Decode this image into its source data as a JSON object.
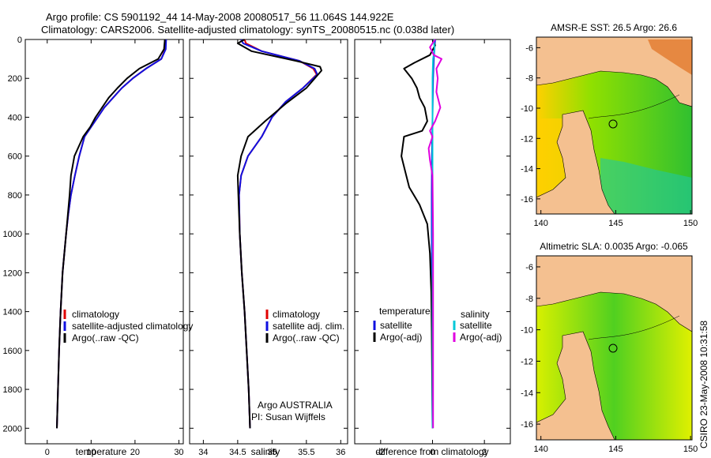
{
  "header": {
    "line1": "Argo profile: CS 5901192_44 14-May-2008 20080517_56 11.064S 144.922E",
    "line2": "Climatology: CARS2006. Satellite-adjusted climatology: synTS_20080515.nc (0.038d later)"
  },
  "credit": "CSIRO 23-May-2008 10:31:58",
  "colors": {
    "climatology": "#e00000",
    "satellite": "#1010e0",
    "argo": "#000000",
    "sat_salinity": "#00c8d8",
    "argo_salinity": "#e000e0",
    "land": "#f4c090"
  },
  "chart_data": [
    {
      "type": "line",
      "xlabel": "temperature",
      "ylabel": "",
      "xlim": [
        -5,
        31
      ],
      "ylim": [
        2080,
        0
      ],
      "xticks": [
        "0",
        "10",
        "20",
        "30"
      ],
      "yticks": [
        "0",
        "200",
        "400",
        "600",
        "800",
        "1000",
        "1200",
        "1400",
        "1600",
        "1800",
        "2000"
      ],
      "legend_labels": [
        "climatology",
        "satellite-adjusted climatology",
        "Argo(..raw -QC)"
      ],
      "series": [
        {
          "key": "climatology",
          "points": [
            [
              27,
              0
            ],
            [
              26.9,
              50
            ],
            [
              26,
              100
            ],
            [
              22.5,
              150
            ],
            [
              19.5,
              200
            ],
            [
              17,
              250
            ],
            [
              15,
              300
            ],
            [
              13,
              350
            ],
            [
              11.5,
              400
            ],
            [
              10,
              450
            ],
            [
              8.5,
              500
            ],
            [
              7.3,
              600
            ],
            [
              6.3,
              700
            ],
            [
              5.4,
              800
            ],
            [
              4.8,
              900
            ],
            [
              4.3,
              1000
            ],
            [
              3.5,
              1200
            ],
            [
              3.05,
              1400
            ],
            [
              2.7,
              1600
            ],
            [
              2.45,
              1800
            ],
            [
              2.2,
              2000
            ]
          ]
        },
        {
          "key": "satellite",
          "points": [
            [
              27.1,
              0
            ],
            [
              27,
              50
            ],
            [
              26,
              100
            ],
            [
              22.5,
              150
            ],
            [
              19.5,
              200
            ],
            [
              17,
              250
            ],
            [
              15,
              300
            ],
            [
              13,
              350
            ],
            [
              11.5,
              400
            ],
            [
              10,
              450
            ],
            [
              8.5,
              500
            ],
            [
              7.3,
              600
            ],
            [
              6.3,
              700
            ],
            [
              5.4,
              800
            ],
            [
              4.8,
              900
            ],
            [
              4.3,
              1000
            ],
            [
              3.5,
              1200
            ],
            [
              3.05,
              1400
            ],
            [
              2.7,
              1600
            ],
            [
              2.45,
              1800
            ],
            [
              2.2,
              2000
            ]
          ]
        },
        {
          "key": "argo",
          "points": [
            [
              26.8,
              0
            ],
            [
              26.6,
              50
            ],
            [
              25.3,
              100
            ],
            [
              21,
              150
            ],
            [
              18.2,
              200
            ],
            [
              16,
              250
            ],
            [
              14,
              300
            ],
            [
              12.5,
              350
            ],
            [
              11,
              400
            ],
            [
              9.8,
              450
            ],
            [
              8.2,
              500
            ],
            [
              6.2,
              600
            ],
            [
              5.4,
              700
            ],
            [
              5.1,
              800
            ],
            [
              4.7,
              900
            ],
            [
              4.3,
              1000
            ],
            [
              3.5,
              1200
            ],
            [
              3.05,
              1400
            ],
            [
              2.7,
              1600
            ],
            [
              2.45,
              1800
            ],
            [
              2.2,
              2000
            ]
          ]
        }
      ]
    },
    {
      "type": "line",
      "xlabel": "salinity",
      "ylabel": "",
      "xlim": [
        33.8,
        36.1
      ],
      "ylim": [
        2080,
        0
      ],
      "xticks": [
        "34",
        "34.5",
        "35",
        "35.5",
        "36"
      ],
      "yticks": [],
      "legend_labels": [
        "climatology",
        "satellite adj. clim.",
        "Argo(..raw -QC)"
      ],
      "annotation": [
        "Argo AUSTRALIA",
        "PI: Susan Wijffels"
      ],
      "series": [
        {
          "key": "climatology",
          "points": [
            [
              34.6,
              0
            ],
            [
              34.62,
              20
            ],
            [
              34.85,
              60
            ],
            [
              35.4,
              110
            ],
            [
              35.6,
              150
            ],
            [
              35.65,
              180
            ],
            [
              35.45,
              250
            ],
            [
              35.2,
              320
            ],
            [
              35,
              400
            ],
            [
              34.85,
              500
            ],
            [
              34.65,
              600
            ],
            [
              34.55,
              700
            ],
            [
              34.52,
              800
            ],
            [
              34.53,
              1000
            ],
            [
              34.56,
              1200
            ],
            [
              34.6,
              1400
            ],
            [
              34.63,
              1600
            ],
            [
              34.66,
              1800
            ],
            [
              34.68,
              2000
            ]
          ]
        },
        {
          "key": "satellite",
          "points": [
            [
              34.55,
              0
            ],
            [
              34.58,
              20
            ],
            [
              34.85,
              60
            ],
            [
              35.4,
              110
            ],
            [
              35.62,
              150
            ],
            [
              35.66,
              180
            ],
            [
              35.45,
              250
            ],
            [
              35.2,
              320
            ],
            [
              35,
              400
            ],
            [
              34.85,
              500
            ],
            [
              34.65,
              600
            ],
            [
              34.55,
              700
            ],
            [
              34.52,
              800
            ],
            [
              34.53,
              1000
            ],
            [
              34.56,
              1200
            ],
            [
              34.6,
              1400
            ],
            [
              34.63,
              1600
            ],
            [
              34.66,
              1800
            ],
            [
              34.68,
              2000
            ]
          ]
        },
        {
          "key": "argo",
          "points": [
            [
              34.6,
              0
            ],
            [
              34.5,
              20
            ],
            [
              34.7,
              60
            ],
            [
              35.35,
              110
            ],
            [
              35.7,
              140
            ],
            [
              35.72,
              160
            ],
            [
              35.5,
              250
            ],
            [
              35.2,
              330
            ],
            [
              34.9,
              420
            ],
            [
              34.65,
              500
            ],
            [
              34.55,
              600
            ],
            [
              34.5,
              700
            ],
            [
              34.51,
              800
            ],
            [
              34.53,
              1000
            ],
            [
              34.56,
              1200
            ],
            [
              34.6,
              1400
            ],
            [
              34.63,
              1600
            ],
            [
              34.66,
              1800
            ],
            [
              34.68,
              2000
            ]
          ]
        }
      ]
    },
    {
      "type": "line",
      "xlabel": "difference from climatology",
      "ylabel": "",
      "xlim": [
        -3,
        3
      ],
      "ylim": [
        2080,
        0
      ],
      "xticks": [
        "-2",
        "0",
        "2"
      ],
      "yticks": [],
      "legend_groups": [
        {
          "title": "temperature",
          "items": [
            "satellite",
            "Argo(-adj)"
          ]
        },
        {
          "title": "salinity",
          "items": [
            "satellite",
            "Argo(-adj)"
          ]
        }
      ],
      "series": [
        {
          "key": "sat_temperature",
          "points": [
            [
              0.1,
              0
            ],
            [
              0.05,
              100
            ],
            [
              0.02,
              200
            ],
            [
              0,
              400
            ],
            [
              -0.02,
              600
            ],
            [
              -0.03,
              800
            ],
            [
              -0.03,
              1000
            ],
            [
              -0.02,
              1400
            ],
            [
              0,
              2000
            ]
          ]
        },
        {
          "key": "argo_temperature",
          "points": [
            [
              0,
              0
            ],
            [
              0.1,
              30
            ],
            [
              -0.1,
              80
            ],
            [
              -0.7,
              120
            ],
            [
              -1.1,
              150
            ],
            [
              -0.8,
              200
            ],
            [
              -0.6,
              250
            ],
            [
              -0.5,
              300
            ],
            [
              -0.3,
              350
            ],
            [
              -0.2,
              420
            ],
            [
              -0.4,
              470
            ],
            [
              -1.1,
              500
            ],
            [
              -1.2,
              600
            ],
            [
              -1.05,
              680
            ],
            [
              -0.9,
              760
            ],
            [
              -0.5,
              850
            ],
            [
              -0.2,
              950
            ],
            [
              -0.1,
              1100
            ],
            [
              -0.05,
              1300
            ],
            [
              -0.03,
              1500
            ],
            [
              0,
              2000
            ]
          ]
        },
        {
          "key": "sat_salinity",
          "points": [
            [
              0.05,
              0
            ],
            [
              0.08,
              50
            ],
            [
              0.02,
              100
            ],
            [
              0,
              200
            ],
            [
              0,
              600
            ],
            [
              0,
              2000
            ]
          ]
        },
        {
          "key": "argo_salinity",
          "points": [
            [
              0.1,
              0
            ],
            [
              -0.1,
              40
            ],
            [
              0.05,
              80
            ],
            [
              0.35,
              100
            ],
            [
              0.15,
              150
            ],
            [
              0.2,
              200
            ],
            [
              0.15,
              270
            ],
            [
              0.3,
              350
            ],
            [
              0.1,
              420
            ],
            [
              -0.1,
              470
            ],
            [
              0,
              500
            ],
            [
              -0.15,
              560
            ],
            [
              -0.1,
              620
            ],
            [
              0,
              700
            ],
            [
              0.02,
              1000
            ],
            [
              0.02,
              2000
            ]
          ]
        }
      ]
    },
    {
      "type": "heatmap",
      "title": "AMSR-E SST: 26.5 Argo: 26.6",
      "xticks": [
        "140",
        "145",
        "150"
      ],
      "yticks": [
        "-6",
        "-8",
        "-10",
        "-12",
        "-14",
        "-16"
      ],
      "xlim": [
        139.7,
        150.1
      ],
      "ylim": [
        -17,
        -5.3
      ],
      "argo_position": [
        145,
        -11
      ]
    },
    {
      "type": "heatmap",
      "title": "Altimetric SLA: 0.0035 Argo: -0.065",
      "xticks": [
        "140",
        "145",
        "150"
      ],
      "yticks": [
        "-6",
        "-8",
        "-10",
        "-12",
        "-14",
        "-16"
      ],
      "xlim": [
        139.7,
        150.1
      ],
      "ylim": [
        -17,
        -5.3
      ],
      "argo_position": [
        145,
        -11
      ]
    }
  ]
}
